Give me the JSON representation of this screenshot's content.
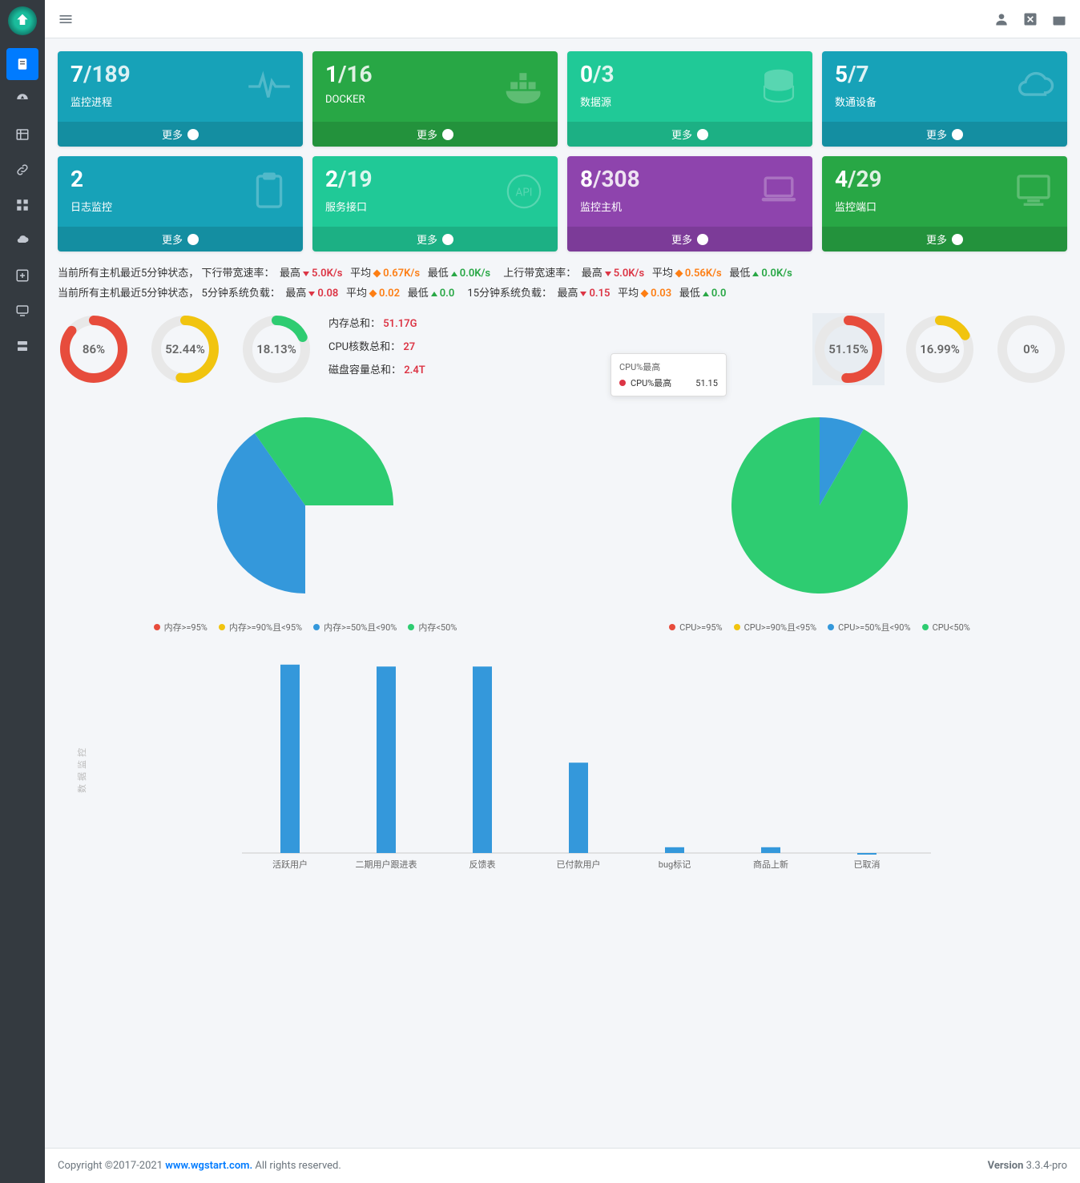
{
  "sidebar": {
    "items": [
      "file",
      "dashboard",
      "table",
      "link",
      "grid",
      "cloud",
      "plus",
      "monitor",
      "server"
    ]
  },
  "cards": [
    {
      "num": "7",
      "denom": "/189",
      "title": "监控进程",
      "color": "#17a2b8",
      "icon": "pulse",
      "more": "更多"
    },
    {
      "num": "1",
      "denom": "/16",
      "title": "DOCKER",
      "color": "#28a745",
      "icon": "docker",
      "more": "更多"
    },
    {
      "num": "0",
      "denom": "/3",
      "title": "数据源",
      "color": "#20c997",
      "icon": "database",
      "more": "更多"
    },
    {
      "num": "5",
      "denom": "/7",
      "title": "数通设备",
      "color": "#17a2b8",
      "icon": "cloud",
      "more": "更多"
    },
    {
      "num": "2",
      "denom": "",
      "title": "日志监控",
      "color": "#17a2b8",
      "icon": "clipboard",
      "more": "更多"
    },
    {
      "num": "2",
      "denom": "/19",
      "title": "服务接口",
      "color": "#20c997",
      "icon": "api",
      "more": "更多"
    },
    {
      "num": "8",
      "denom": "/308",
      "title": "监控主机",
      "color": "#8e44ad",
      "icon": "laptop",
      "more": "更多"
    },
    {
      "num": "4",
      "denom": "/29",
      "title": "监控端口",
      "color": "#28a745",
      "icon": "desktop",
      "more": "更多"
    }
  ],
  "stats": {
    "line1_prefix": "当前所有主机最近5分钟状态，",
    "down_label": "下行带宽速率：",
    "up_label": "上行带宽速率：",
    "max_label": "最高",
    "avg_label": "平均",
    "min_label": "最低",
    "down_max": "5.0K/s",
    "down_avg": "0.67K/s",
    "down_min": "0.0K/s",
    "up_max": "5.0K/s",
    "up_avg": "0.56K/s",
    "up_min": "0.0K/s",
    "line2_prefix": "当前所有主机最近5分钟状态，",
    "load5_label": "5分钟系统负载：",
    "load15_label": "15分钟系统负载：",
    "l5_max": "0.08",
    "l5_avg": "0.02",
    "l5_min": "0.0",
    "l15_max": "0.15",
    "l15_avg": "0.03",
    "l15_min": "0.0"
  },
  "gauges_left": [
    {
      "value": 86,
      "text": "86%",
      "color": "#e74c3c"
    },
    {
      "value": 52.44,
      "text": "52.44%",
      "color": "#f1c40f"
    },
    {
      "value": 18.13,
      "text": "18.13%",
      "color": "#2ecc71"
    }
  ],
  "gauges_right": [
    {
      "value": 51.15,
      "text": "51.15%",
      "color": "#e74c3c",
      "highlighted": true
    },
    {
      "value": 16.99,
      "text": "16.99%",
      "color": "#f1c40f"
    },
    {
      "value": 0,
      "text": "0%",
      "color": "#2ecc71"
    }
  ],
  "info": {
    "mem_label": "内存总和：",
    "mem": "51.17G",
    "cpu_label": "CPU核数总和：",
    "cpu": "27",
    "disk_label": "磁盘容量总和：",
    "disk": "2.4T"
  },
  "tooltip": {
    "title": "CPU%最高",
    "row_label": "CPU%最高",
    "row_value": "51.15"
  },
  "pie_left": {
    "legend": [
      {
        "label": "内存>=95%",
        "color": "#e74c3c"
      },
      {
        "label": "内存>=90%且<95%",
        "color": "#f1c40f"
      },
      {
        "label": "内存>=50%且<90%",
        "color": "#3498db"
      },
      {
        "label": "内存<50%",
        "color": "#2ecc71"
      }
    ],
    "slices": [
      {
        "color": "#3498db",
        "start": 180,
        "end": 325
      },
      {
        "color": "#2ecc71",
        "start": 325,
        "end": 450
      }
    ]
  },
  "pie_right": {
    "legend": [
      {
        "label": "CPU>=95%",
        "color": "#e74c3c"
      },
      {
        "label": "CPU>=90%且<95%",
        "color": "#f1c40f"
      },
      {
        "label": "CPU>=50%且<90%",
        "color": "#3498db"
      },
      {
        "label": "CPU<50%",
        "color": "#2ecc71"
      }
    ],
    "slices": [
      {
        "color": "#2ecc71",
        "start": 30,
        "end": 360
      },
      {
        "color": "#3498db",
        "start": 0,
        "end": 30
      }
    ]
  },
  "bar_chart": {
    "ylabel": "数据监控",
    "ymax": 100,
    "bars": [
      {
        "label": "活跃用户",
        "value": 98,
        "color": "#3498db"
      },
      {
        "label": "二期用户跟进表",
        "value": 97,
        "color": "#3498db"
      },
      {
        "label": "反馈表",
        "value": 97,
        "color": "#3498db"
      },
      {
        "label": "已付款用户",
        "value": 47,
        "color": "#3498db"
      },
      {
        "label": "bug标记",
        "value": 3,
        "color": "#3498db"
      },
      {
        "label": "商品上新",
        "value": 3,
        "color": "#3498db"
      },
      {
        "label": "已取消",
        "value": 0,
        "color": "#3498db"
      }
    ]
  },
  "footer": {
    "copyright": "Copyright ©2017-2021 ",
    "link": "www.wgstart.com.",
    "rights": " All rights reserved.",
    "version_label": "Version ",
    "version": "3.3.4-pro"
  }
}
